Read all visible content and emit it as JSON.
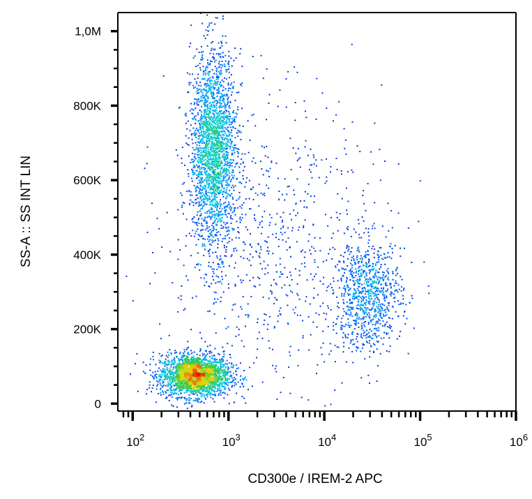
{
  "chart_data": {
    "type": "scatter",
    "title": "",
    "xlabel": "CD300e / IREM-2 APC",
    "ylabel": "SS-A :: SS INT LIN",
    "x_scale": "log",
    "xlim": [
      70,
      1000000
    ],
    "ylim": [
      -20000,
      1050000
    ],
    "x_ticks": [
      {
        "value": 100,
        "base": "10",
        "exp": "2"
      },
      {
        "value": 1000,
        "base": "10",
        "exp": "3"
      },
      {
        "value": 10000,
        "base": "10",
        "exp": "4"
      },
      {
        "value": 100000,
        "base": "10",
        "exp": "5"
      },
      {
        "value": 1000000,
        "base": "10",
        "exp": "6"
      }
    ],
    "y_ticks": [
      {
        "value": 0,
        "label": "0"
      },
      {
        "value": 200000,
        "label": "200K"
      },
      {
        "value": 400000,
        "label": "400K"
      },
      {
        "value": 600000,
        "label": "600K"
      },
      {
        "value": 800000,
        "label": "800K"
      },
      {
        "value": 1000000,
        "label": "1,0M"
      }
    ],
    "colormap": "density (blue-cyan-green-yellow-red)",
    "grid": false,
    "legend": "none",
    "populations": [
      {
        "x_center": 450,
        "x_spread_decades": 0.18,
        "y_center": 75000,
        "y_spread": 28000,
        "events": 2400
      },
      {
        "x_center": 700,
        "x_spread_decades": 0.12,
        "y_center": 680000,
        "y_spread": 130000,
        "events": 2300
      },
      {
        "x_center": 28000,
        "x_spread_decades": 0.18,
        "y_center": 290000,
        "y_spread": 75000,
        "events": 900
      },
      {
        "x_center": 3000,
        "x_spread_decades": 0.55,
        "y_center": 420000,
        "y_spread": 200000,
        "events": 700
      }
    ]
  }
}
